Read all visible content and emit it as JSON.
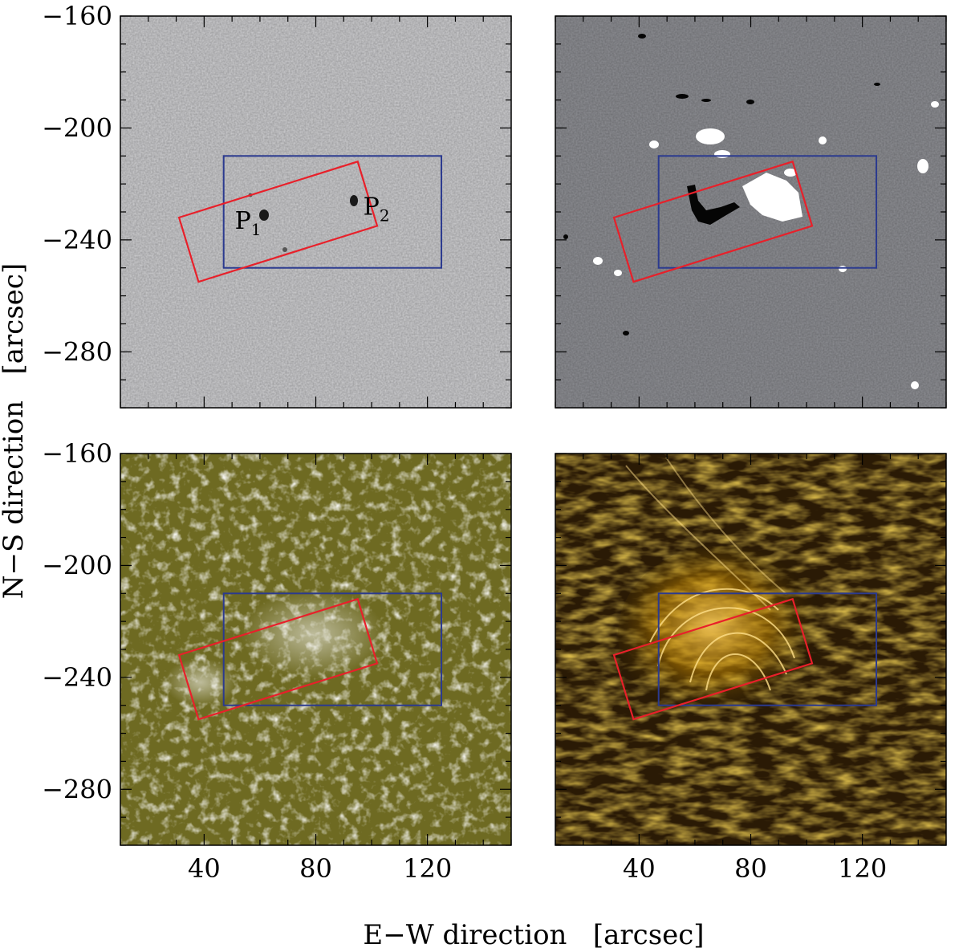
{
  "figure": {
    "x_axis_label": "E−W direction   [arcsec]",
    "y_axis_label": "N−S direction   [arcsec]",
    "x_ticks": [
      {
        "value": 40,
        "label": "40"
      },
      {
        "value": 80,
        "label": "80"
      },
      {
        "value": 120,
        "label": "120"
      }
    ],
    "y_ticks": [
      {
        "value": -160,
        "label": "−160"
      },
      {
        "value": -200,
        "label": "−200"
      },
      {
        "value": -240,
        "label": "−240"
      },
      {
        "value": -280,
        "label": "−280"
      }
    ],
    "x_range": [
      10,
      150
    ],
    "y_range": [
      -160,
      -300
    ],
    "overlay_boxes": {
      "blue_rect": {
        "x": [
          47,
          125
        ],
        "y": [
          -210,
          -250
        ],
        "color": "#2b3a8f"
      },
      "red_rect": {
        "corners": [
          [
            31,
            -232
          ],
          [
            95,
            -212
          ],
          [
            102,
            -235
          ],
          [
            38,
            -255
          ]
        ],
        "color": "#e8202a"
      }
    },
    "panels": [
      {
        "id": "continuum",
        "colors": {
          "base": "#c3c3c6",
          "spot": "#1a1a1a"
        },
        "labels": [
          {
            "text": "P",
            "sub": "1",
            "x": 51,
            "y": -236
          },
          {
            "text": "P",
            "sub": "2",
            "x": 97,
            "y": -231
          }
        ]
      },
      {
        "id": "magnetogram",
        "colors": {
          "base": "#8e8f94",
          "neg": "#050505",
          "pos": "#ffffff"
        }
      },
      {
        "id": "chromosphere",
        "colors": {
          "base": "#6e6a22",
          "bright": "#ffffff"
        }
      },
      {
        "id": "corona",
        "colors": {
          "base": "#2a1a05",
          "mid": "#b07800",
          "bright": "#ffd060"
        }
      }
    ]
  }
}
